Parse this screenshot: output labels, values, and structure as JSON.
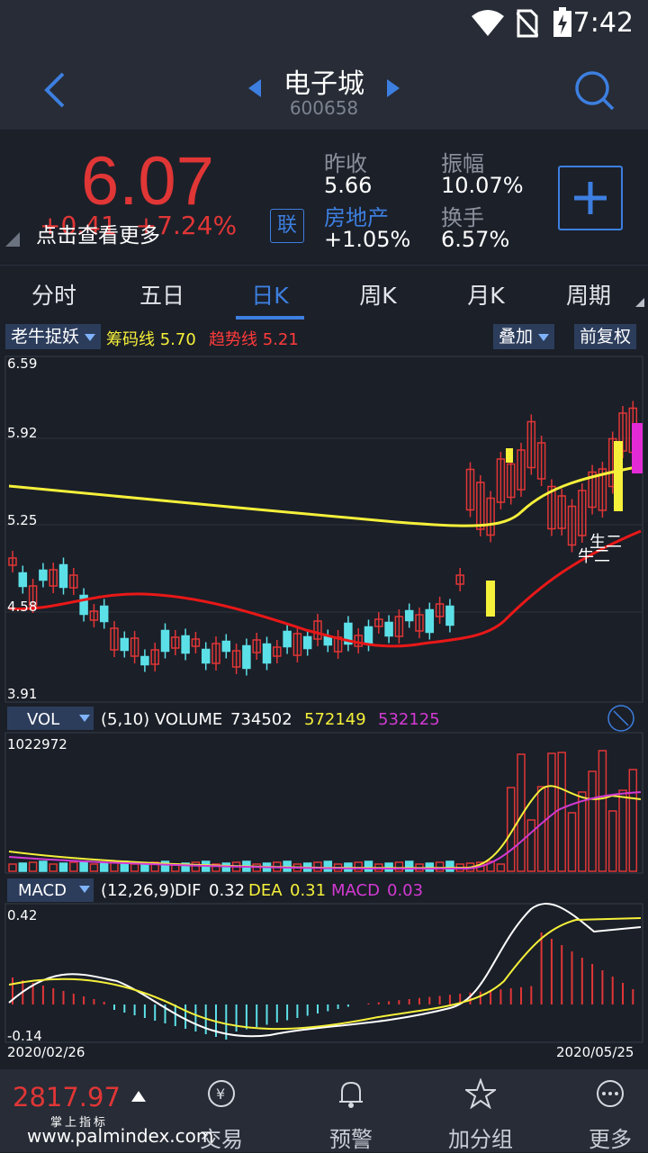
{
  "status": {
    "time": "7:42"
  },
  "header": {
    "title": "电子城",
    "code": "600658"
  },
  "quote": {
    "price": "6.07",
    "change": "+0.41",
    "change_pct": "+7.24%",
    "tip": "点击查看更多",
    "link_badge": "联",
    "prev_close_label": "昨收",
    "prev_close": "5.66",
    "sector_label": "房地产",
    "sector_change": "+1.05%",
    "amplitude_label": "振幅",
    "amplitude": "10.07%",
    "turnover_label": "换手",
    "turnover": "6.57%"
  },
  "tabs": [
    "分时",
    "五日",
    "日K",
    "周K",
    "月K",
    "周期"
  ],
  "active_tab": 2,
  "indicators": {
    "main_select": "老牛捉妖",
    "chip_label": "筹码线",
    "chip_value": "5.70",
    "trend_label": "趋势线",
    "trend_value": "5.21",
    "overlay_btn": "叠加",
    "adjust_btn": "前复权",
    "price_axis": [
      "6.59",
      "5.92",
      "5.25",
      "4.58",
      "3.91"
    ],
    "annotations": [
      "生二",
      "牛二"
    ],
    "vol_select": "VOL",
    "vol_params": "(5,10) VOLUME",
    "vol_value": "734502",
    "vol_ma5": "572149",
    "vol_ma10": "532125",
    "vol_max": "1022972",
    "macd_select": "MACD",
    "macd_params": "(12,26,9)",
    "dif_label": "DIF",
    "dif": "0.32",
    "dea_label": "DEA",
    "dea": "0.31",
    "macd_label": "MACD",
    "macd": "0.03",
    "macd_max": "0.42",
    "macd_min": "-0.14",
    "date_start": "2020/02/26",
    "date_end": "2020/05/25"
  },
  "bottom_nav": {
    "index_value": "2817.97",
    "index_sub": "掌上指标",
    "items": [
      "交易",
      "预警",
      "加分组",
      "更多"
    ]
  },
  "watermark": "www.palmindex.com",
  "colors": {
    "up": "#e03636",
    "down": "#5ce0e8",
    "accent": "#3d7fe0",
    "chip_line": "#f5f03a",
    "trend_line": "#e81818",
    "macd_line": "#d23ad2"
  }
}
